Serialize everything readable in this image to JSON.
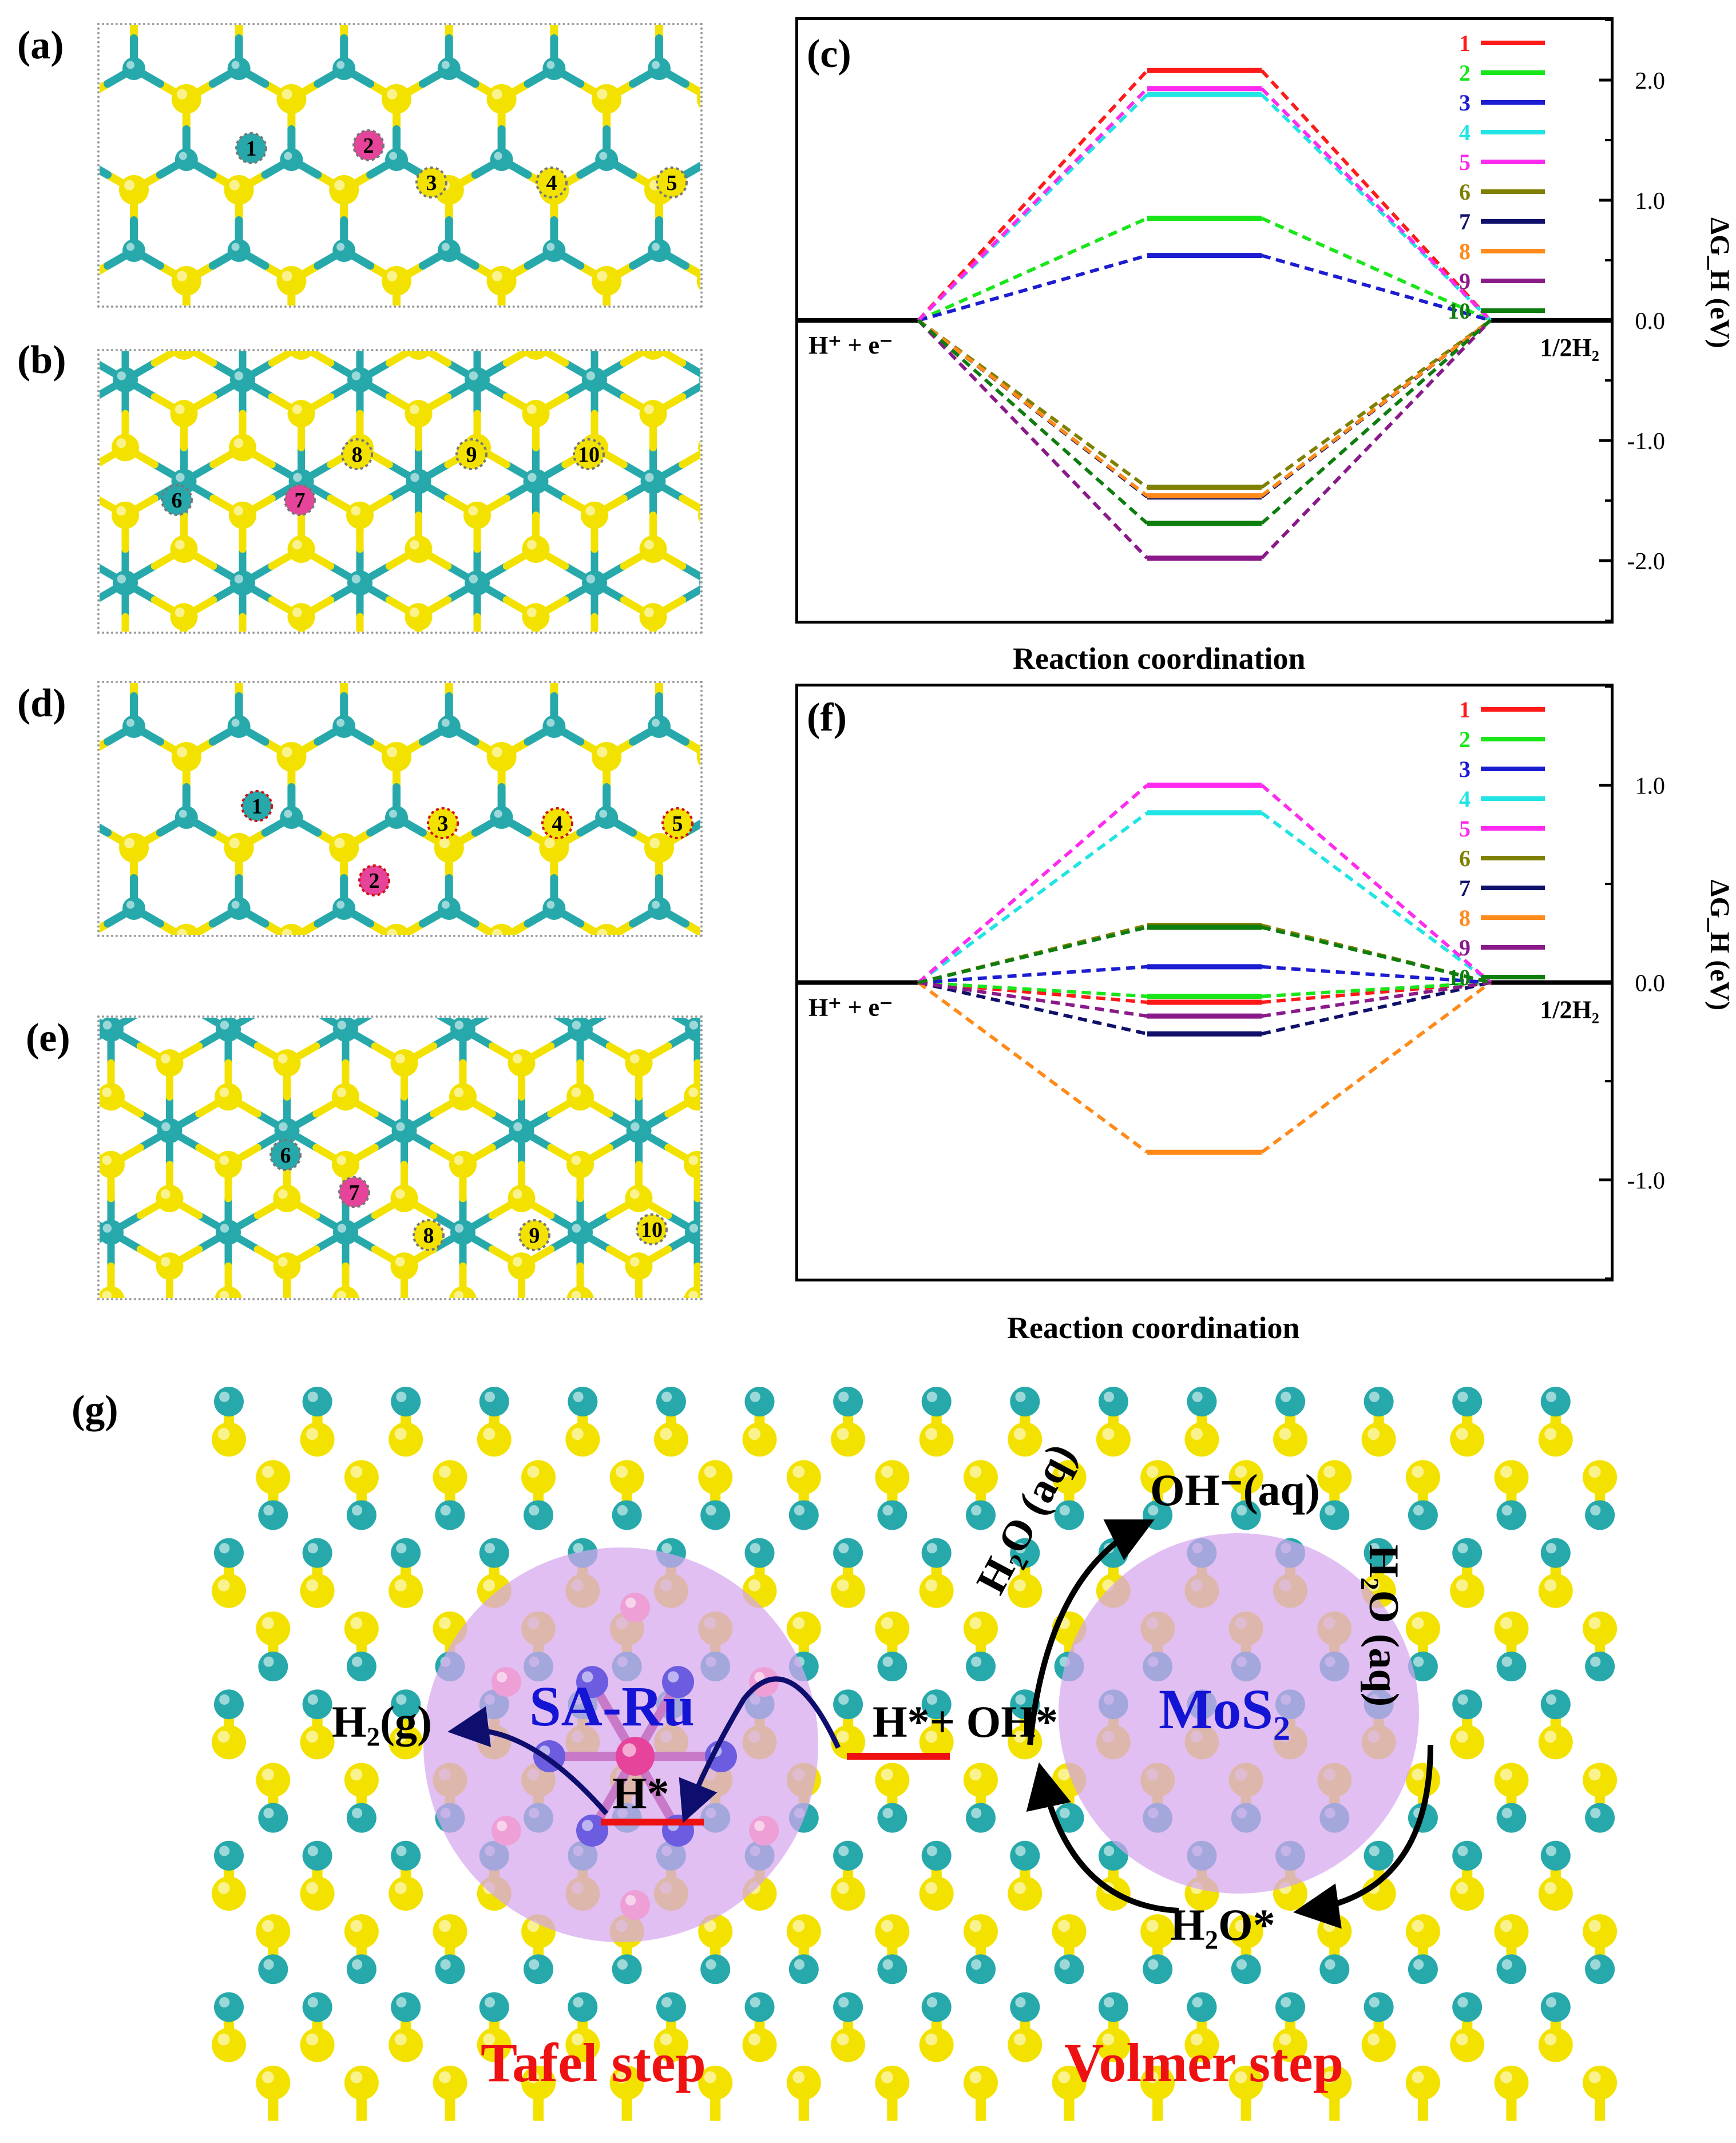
{
  "panel_labels": {
    "a": "(a)",
    "b": "(b)",
    "c": "(c)",
    "d": "(d)",
    "e": "(e)",
    "f": "(f)",
    "g": "(g)"
  },
  "site_labels_top": [
    "1",
    "2",
    "3",
    "4",
    "5"
  ],
  "site_labels_side": [
    "6",
    "7",
    "8",
    "9",
    "10"
  ],
  "colors": {
    "mo": "#27a9ab",
    "s": "#f3e200",
    "ru": "#e6449b",
    "bond": "#27a9ab"
  },
  "chart_data": [
    {
      "id": "c",
      "type": "line",
      "ylabel": "ΔG_H (eV)",
      "xlabel": "Reaction coordination",
      "start_label": "H⁺ + e⁻",
      "end_label": "1/2H₂",
      "ylim": [
        -2.5,
        2.5
      ],
      "yticks": [
        "2.0",
        "1.0",
        "0.0",
        "-1.0",
        "-2.0"
      ],
      "legend_position": "top-right",
      "series": [
        {
          "name": "1",
          "color": "#ff1a1a",
          "value": 2.08
        },
        {
          "name": "2",
          "color": "#19e619",
          "value": 0.85
        },
        {
          "name": "3",
          "color": "#1c1cd0",
          "value": 0.54
        },
        {
          "name": "4",
          "color": "#22e4e4",
          "value": 1.88
        },
        {
          "name": "5",
          "color": "#ff2af0",
          "value": 1.93
        },
        {
          "name": "6",
          "color": "#808000",
          "value": -1.39
        },
        {
          "name": "7",
          "color": "#10106a",
          "value": -1.47
        },
        {
          "name": "8",
          "color": "#ff8a1a",
          "value": -1.46
        },
        {
          "name": "9",
          "color": "#8a1a8a",
          "value": -1.98
        },
        {
          "name": "10",
          "color": "#0d7d0d",
          "value": -1.69
        }
      ]
    },
    {
      "id": "f",
      "type": "line",
      "ylabel": "ΔG_H (eV)",
      "xlabel": "Reaction coordination",
      "start_label": "H⁺ + e⁻",
      "end_label": "1/2H₂",
      "ylim": [
        -1.5,
        1.5
      ],
      "yticks": [
        "1.0",
        "0.0",
        "-1.0"
      ],
      "legend_position": "top-right",
      "series": [
        {
          "name": "1",
          "color": "#ff1a1a",
          "value": -0.1
        },
        {
          "name": "2",
          "color": "#19e619",
          "value": -0.07
        },
        {
          "name": "3",
          "color": "#1c1cd0",
          "value": 0.08
        },
        {
          "name": "4",
          "color": "#22e4e4",
          "value": 0.86
        },
        {
          "name": "5",
          "color": "#ff2af0",
          "value": 1.0
        },
        {
          "name": "6",
          "color": "#808000",
          "value": 0.29
        },
        {
          "name": "7",
          "color": "#10106a",
          "value": -0.26
        },
        {
          "name": "8",
          "color": "#ff8a1a",
          "value": -0.86
        },
        {
          "name": "9",
          "color": "#8a1a8a",
          "value": -0.17
        },
        {
          "name": "10",
          "color": "#0d7d0d",
          "value": 0.28
        }
      ]
    }
  ],
  "mechanism": {
    "sa_ru": "SA-Ru",
    "mos2": "MoS₂",
    "h2g": "H₂(g)",
    "h_star": "H*",
    "h_oh": "H*+ OH*",
    "oh_aq": "OH⁻(aq)",
    "h2o_left": "H₂O (aq)",
    "h2o_right": "H₂O (aq)",
    "h2o_star": "H₂O*",
    "tafel": "Tafel step",
    "volmer": "Volmer step"
  }
}
